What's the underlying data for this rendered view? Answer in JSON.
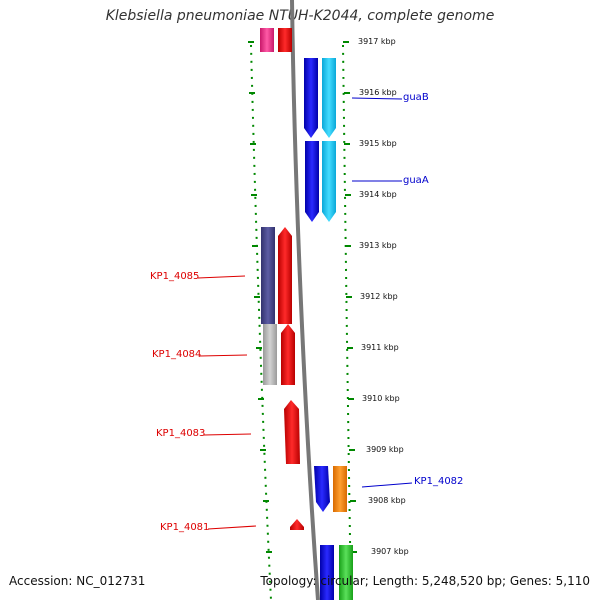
{
  "title": "Klebsiella pneumoniae NTUH-K2044, complete genome",
  "footer": {
    "accession": "Accession: NC_012731",
    "stats": "Topology: circular; Length: 5,248,520 bp; Genes: 5,110"
  },
  "kbp_ticks": [
    "3917 kbp",
    "3916 kbp",
    "3915 kbp",
    "3914 kbp",
    "3913 kbp",
    "3912 kbp",
    "3911 kbp",
    "3910 kbp",
    "3909 kbp",
    "3908 kbp",
    "3907 kbp"
  ],
  "gene_labels": {
    "guaB": "guaB",
    "guaA": "guaA",
    "KP1_4085": "KP1_4085",
    "KP1_4084": "KP1_4084",
    "KP1_4083": "KP1_4083",
    "KP1_4082": "KP1_4082",
    "KP1_4081": "KP1_4081"
  },
  "colors": {
    "label_red": "#dd0000",
    "label_blue": "#0000cc",
    "backbone": "#888888",
    "tick_green": "#008800",
    "gene_blue": "#1010ee",
    "gene_cyan": "#22ccee",
    "gene_red": "#ee1111",
    "gene_navy": "#4a4a8c",
    "gene_grey": "#bbbbbb",
    "gene_orange": "#ff8800",
    "gene_green": "#33cc33",
    "gene_pink": "#ee4488"
  }
}
